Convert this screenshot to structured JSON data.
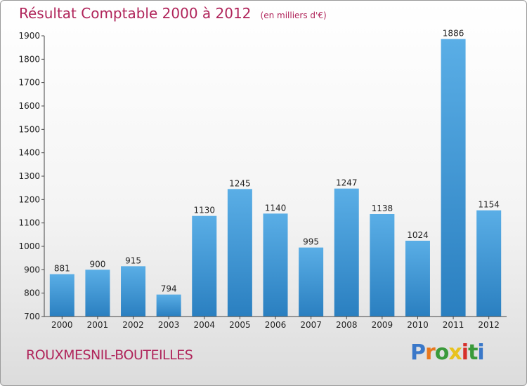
{
  "header": {
    "title": "Résultat Comptable 2000 à 2012",
    "subtitle": "(en milliers d'€)"
  },
  "footer": {
    "place": "ROUXMESNIL-BOUTEILLES",
    "logo_letters": [
      "P",
      "r",
      "o",
      "x",
      "i",
      "t",
      "i"
    ]
  },
  "colors": {
    "title": "#b0245a",
    "bar_light": "#5aaee6",
    "bar_dark": "#2a7fc0",
    "logo": [
      "#3a78c9",
      "#e8781e",
      "#3a9a3a",
      "#e8c21e",
      "#d6302b",
      "#3a9a3a",
      "#3a78c9"
    ]
  },
  "chart_data": {
    "type": "bar",
    "title": "Résultat Comptable 2000 à 2012",
    "subtitle": "(en milliers d'€)",
    "categories": [
      "2000",
      "2001",
      "2002",
      "2003",
      "2004",
      "2005",
      "2006",
      "2007",
      "2008",
      "2009",
      "2010",
      "2011",
      "2012"
    ],
    "values": [
      881,
      900,
      915,
      794,
      1130,
      1245,
      1140,
      995,
      1247,
      1138,
      1024,
      1886,
      1154
    ],
    "ylim": [
      700,
      1900
    ],
    "yticks": [
      700,
      800,
      900,
      1000,
      1100,
      1200,
      1300,
      1400,
      1500,
      1600,
      1700,
      1800,
      1900
    ],
    "xlabel": "",
    "ylabel": "",
    "grid": false,
    "legend": "none"
  }
}
